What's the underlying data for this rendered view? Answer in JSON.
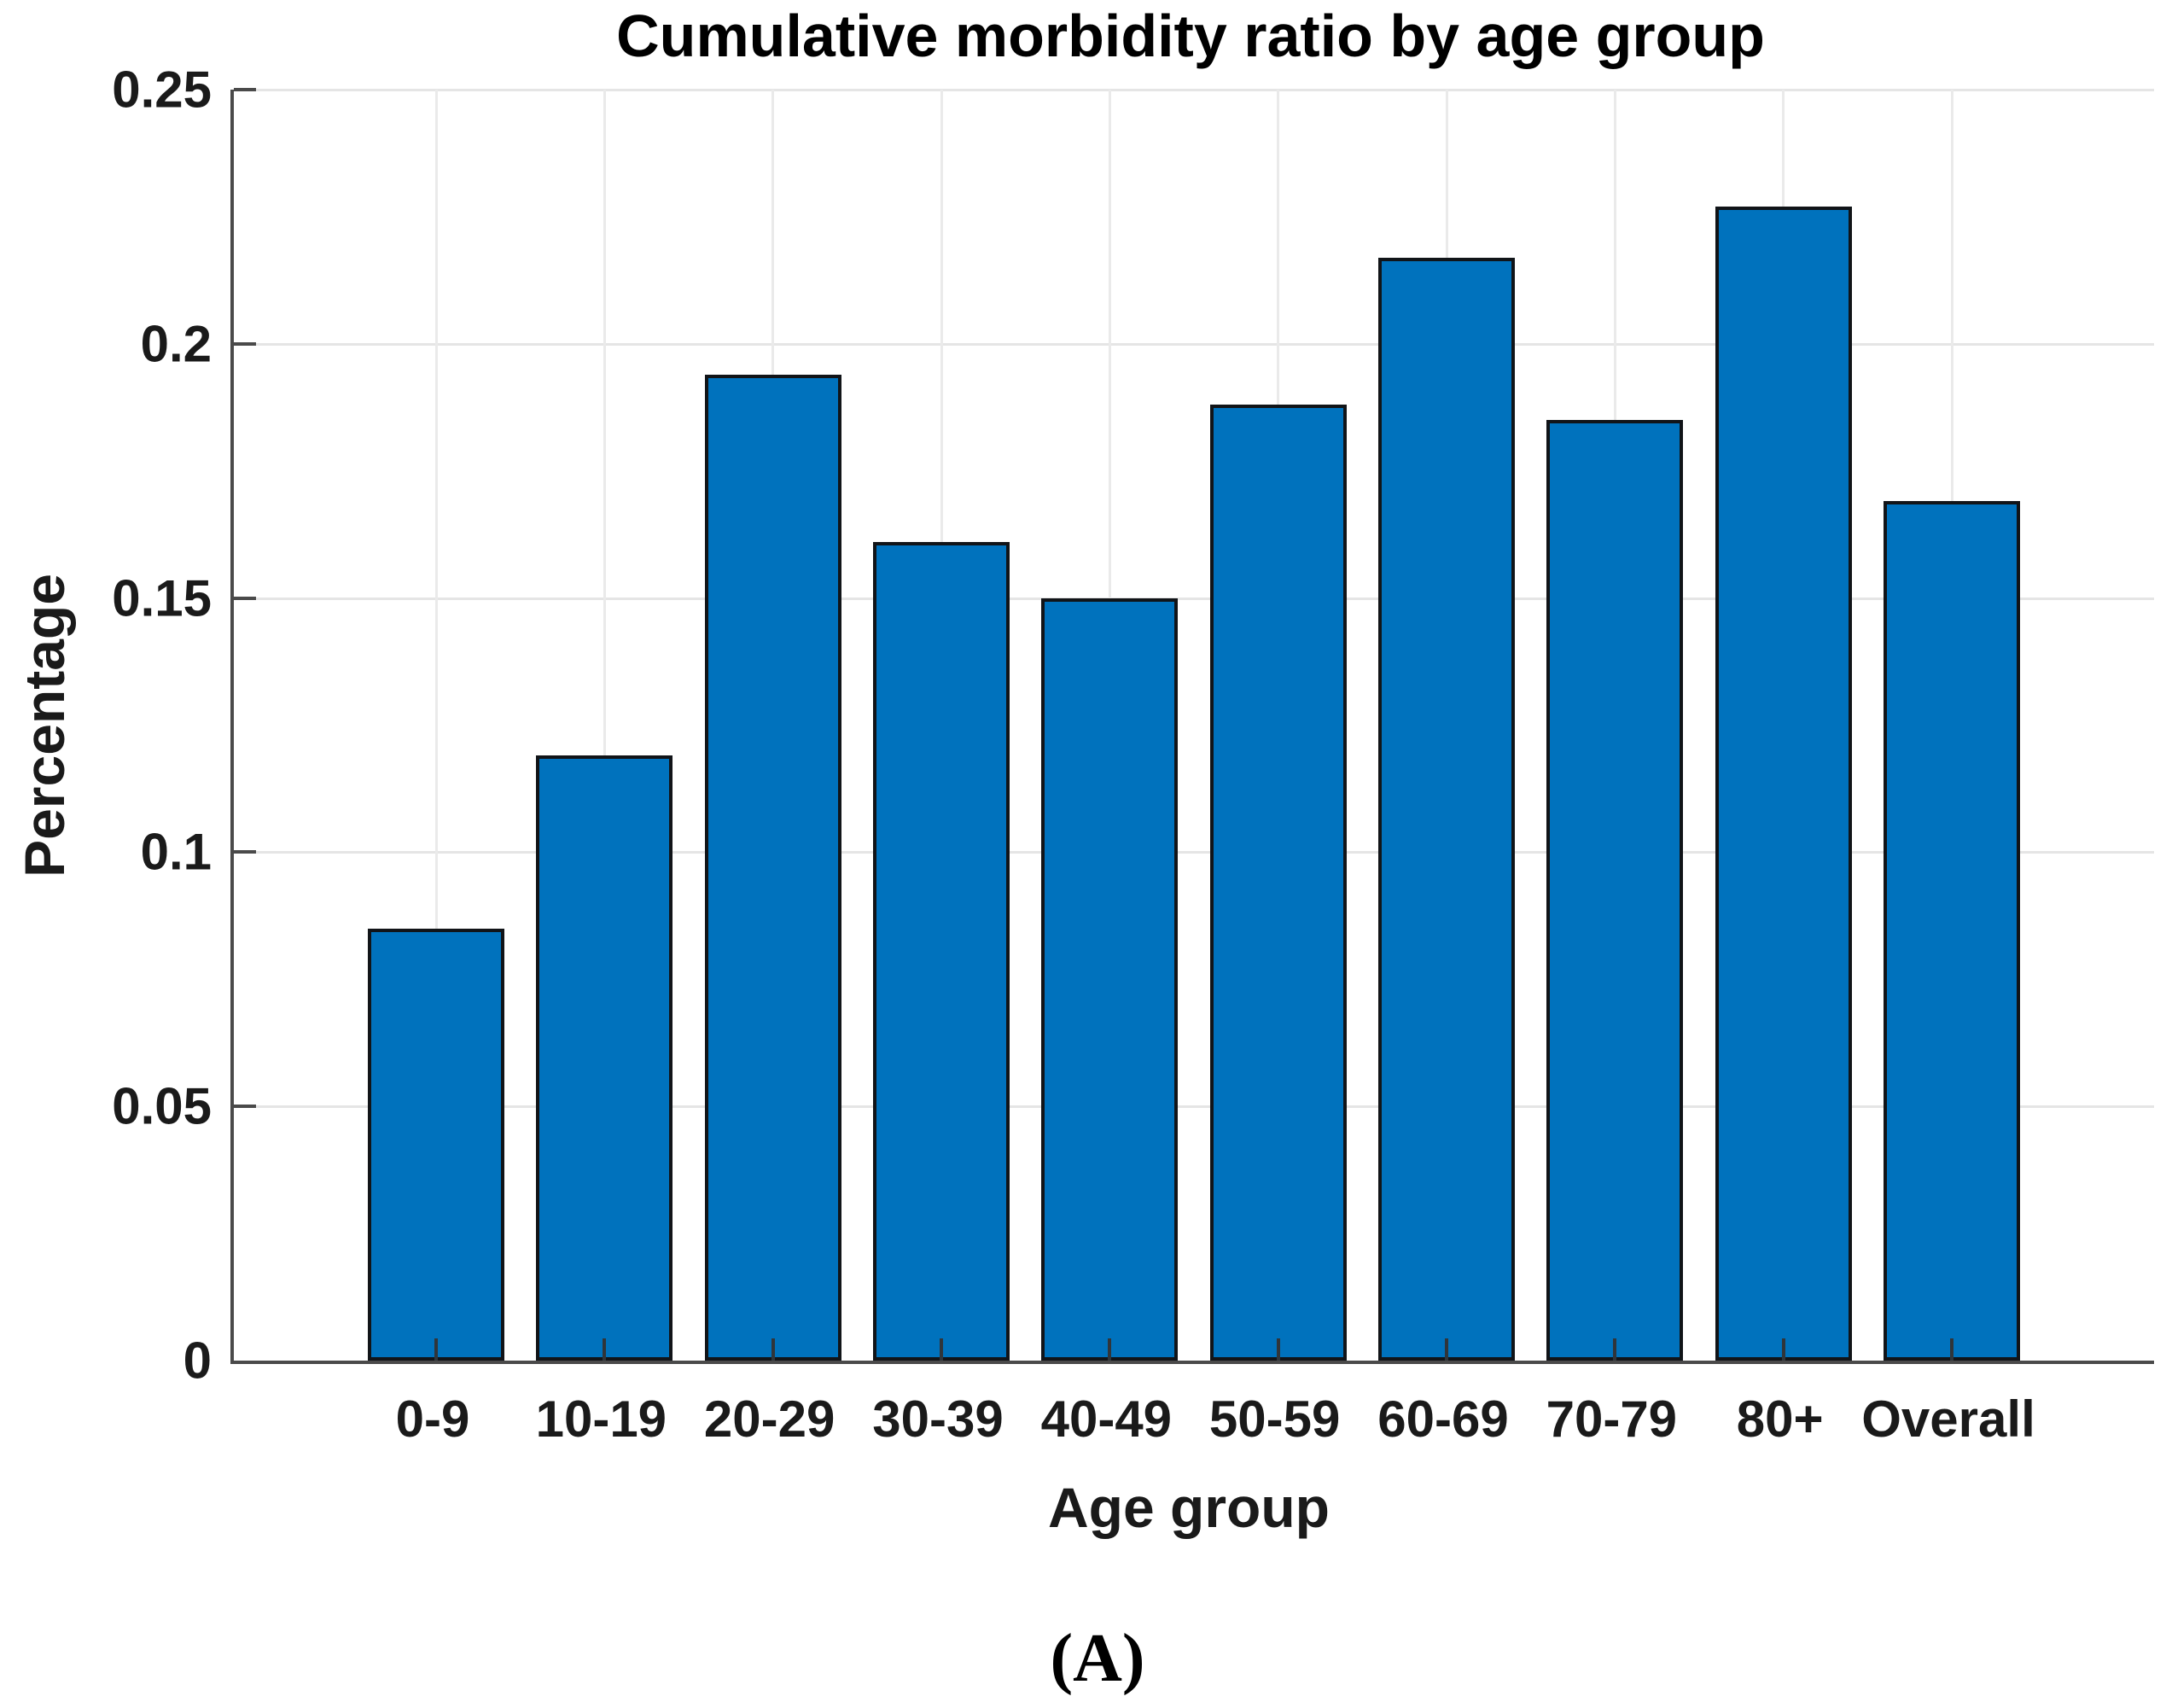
{
  "chart_data": {
    "type": "bar",
    "title": "Cumulative morbidity ratio by age group",
    "xlabel": "Age group",
    "ylabel": "Percentage",
    "categories": [
      "0-9",
      "10-19",
      "20-29",
      "30-39",
      "40-49",
      "50-59",
      "60-69",
      "70-79",
      "80+",
      "Overall"
    ],
    "values": [
      0.085,
      0.119,
      0.194,
      0.161,
      0.15,
      0.188,
      0.217,
      0.185,
      0.227,
      0.169
    ],
    "ylim": [
      0,
      0.25
    ],
    "yticks": [
      0,
      0.05,
      0.1,
      0.15,
      0.2,
      0.25
    ],
    "ytick_labels": [
      "0",
      "0.05",
      "0.1",
      "0.15",
      "0.2",
      "0.25"
    ],
    "grid": "on",
    "legend": "none",
    "bar_color": "#0072BD",
    "bar_edge_color": "#111418",
    "axis_color": "#4a4a4a",
    "background": "#ffffff"
  },
  "caption": {
    "panel_label": "(A)"
  }
}
